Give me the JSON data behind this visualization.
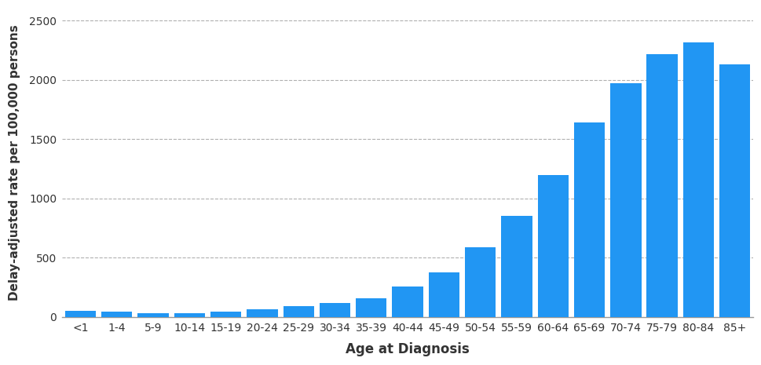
{
  "categories": [
    "<1",
    "1-4",
    "5-9",
    "10-14",
    "15-19",
    "20-24",
    "25-29",
    "30-34",
    "35-39",
    "40-44",
    "45-49",
    "50-54",
    "55-59",
    "60-64",
    "65-69",
    "70-74",
    "75-79",
    "80-84",
    "85+"
  ],
  "values": [
    50,
    45,
    30,
    30,
    45,
    65,
    90,
    120,
    160,
    255,
    375,
    590,
    855,
    1200,
    1640,
    1975,
    2215,
    2315,
    2130
  ],
  "bar_color": "#2196F3",
  "xlabel": "Age at Diagnosis",
  "ylabel": "Delay-adjusted rate per 100,000 persons",
  "ylim": [
    0,
    2600
  ],
  "yticks": [
    0,
    500,
    1000,
    1500,
    2000,
    2500
  ],
  "background_color": "#ffffff",
  "grid_color": "#b0b0b0",
  "label_fontsize": 12,
  "tick_fontsize": 10,
  "bar_width": 0.85
}
